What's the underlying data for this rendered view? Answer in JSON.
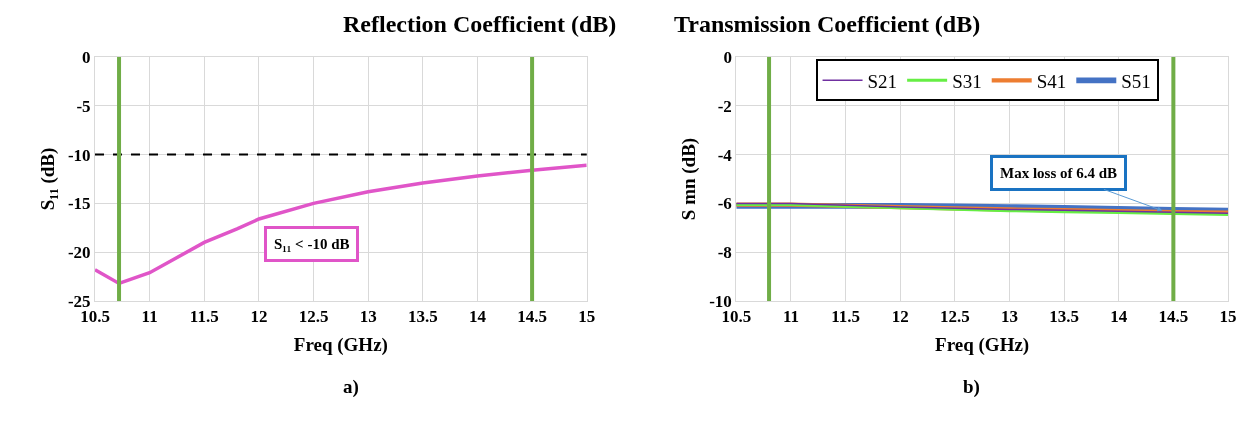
{
  "chart_data": [
    {
      "type": "line",
      "title": "Reflection Coefficient (dB)",
      "xlabel": "Freq (GHz)",
      "ylabel": "S₁₁ (dB)",
      "x": [
        10.5,
        10.72,
        11,
        11.5,
        11.8,
        12,
        12.5,
        13,
        13.5,
        14,
        14.5,
        15
      ],
      "series": [
        {
          "color": "#e055c8",
          "values": [
            -21.8,
            -23.2,
            -22.1,
            -19.0,
            -17.6,
            -16.6,
            -15.0,
            -13.8,
            -12.9,
            -12.2,
            -11.6,
            -11.1
          ]
        }
      ],
      "xlim": [
        10.5,
        15
      ],
      "xticks": [
        10.5,
        11,
        11.5,
        12,
        12.5,
        13,
        13.5,
        14,
        14.5,
        15
      ],
      "ylim": [
        -25,
        0
      ],
      "yticks": [
        -25,
        -20,
        -15,
        -10,
        -5,
        0
      ],
      "grid": true,
      "legend": false,
      "marker": "none",
      "ref_lines": [
        {
          "axis": "y",
          "value": -10,
          "color": "#000000",
          "line_style": "dashed"
        },
        {
          "axis": "x",
          "value": 10.72,
          "color": "#70ad47",
          "line_style": "solid"
        },
        {
          "axis": "x",
          "value": 14.5,
          "color": "#70ad47",
          "line_style": "solid"
        }
      ],
      "annotations": [
        "S₁₁ < -10 dB",
        "a)"
      ]
    },
    {
      "type": "line",
      "title": "Transmission Coefficient (dB)",
      "xlabel": "Freq (GHz)",
      "ylabel": "S mn (dB)",
      "x": [
        10.5,
        11,
        11.5,
        12,
        12.5,
        13,
        13.5,
        14,
        14.5,
        15
      ],
      "series": [
        {
          "name": "S21",
          "color": "#7030a0",
          "values": [
            -6.0,
            -6.0,
            -6.08,
            -6.15,
            -6.2,
            -6.25,
            -6.28,
            -6.32,
            -6.36,
            -6.4
          ]
        },
        {
          "name": "S31",
          "color": "#66ee44",
          "values": [
            -6.05,
            -6.05,
            -6.12,
            -6.18,
            -6.24,
            -6.3,
            -6.34,
            -6.38,
            -6.42,
            -6.46
          ]
        },
        {
          "name": "S41",
          "color": "#ed7d31",
          "values": [
            -6.05,
            -6.05,
            -6.1,
            -6.15,
            -6.2,
            -6.25,
            -6.28,
            -6.32,
            -6.36,
            -6.38
          ]
        },
        {
          "name": "S51",
          "color": "#4472c4",
          "values": [
            -6.1,
            -6.1,
            -6.1,
            -6.1,
            -6.12,
            -6.15,
            -6.18,
            -6.22,
            -6.26,
            -6.3
          ]
        }
      ],
      "xlim": [
        10.5,
        15
      ],
      "xticks": [
        10.5,
        11,
        11.5,
        12,
        12.5,
        13,
        13.5,
        14,
        14.5,
        15
      ],
      "ylim": [
        -10,
        0
      ],
      "yticks": [
        -10,
        -8,
        -6,
        -4,
        -2,
        0
      ],
      "grid": true,
      "legend": "top",
      "marker": "none",
      "ref_lines": [
        {
          "axis": "x",
          "value": 10.8,
          "color": "#70ad47",
          "line_style": "solid"
        },
        {
          "axis": "x",
          "value": 14.5,
          "color": "#70ad47",
          "line_style": "solid"
        }
      ],
      "annotations": [
        {
          "text": "Max loss of 6.4 dB",
          "x": 14.4,
          "y": -6.3
        },
        "b)"
      ]
    }
  ]
}
